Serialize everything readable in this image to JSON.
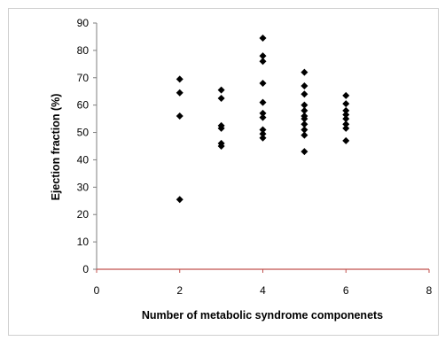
{
  "chart_data": {
    "type": "scatter",
    "xlabel": "Number of metabolic syndrome componenets",
    "ylabel": "Ejection fraction (%)",
    "xlim": [
      0,
      8
    ],
    "ylim": [
      0,
      90
    ],
    "xticks": [
      0,
      2,
      4,
      6,
      8
    ],
    "yticks": [
      0,
      10,
      20,
      30,
      40,
      50,
      60,
      70,
      80,
      90
    ],
    "grid": false,
    "legend": "none",
    "marker": "diamond",
    "marker_color": "#000000",
    "axis_color": "#c0504d",
    "points": [
      {
        "x": 2,
        "y": 69.5
      },
      {
        "x": 2,
        "y": 64.5
      },
      {
        "x": 2,
        "y": 56
      },
      {
        "x": 2,
        "y": 25.5
      },
      {
        "x": 3,
        "y": 65.5
      },
      {
        "x": 3,
        "y": 62.5
      },
      {
        "x": 3,
        "y": 52.5
      },
      {
        "x": 3,
        "y": 51.5
      },
      {
        "x": 3,
        "y": 46
      },
      {
        "x": 3,
        "y": 45
      },
      {
        "x": 4,
        "y": 84.5
      },
      {
        "x": 4,
        "y": 78
      },
      {
        "x": 4,
        "y": 76
      },
      {
        "x": 4,
        "y": 68
      },
      {
        "x": 4,
        "y": 61
      },
      {
        "x": 4,
        "y": 57
      },
      {
        "x": 4,
        "y": 55.5
      },
      {
        "x": 4,
        "y": 51
      },
      {
        "x": 4,
        "y": 49.5
      },
      {
        "x": 4,
        "y": 48
      },
      {
        "x": 5,
        "y": 72
      },
      {
        "x": 5,
        "y": 67
      },
      {
        "x": 5,
        "y": 64
      },
      {
        "x": 5,
        "y": 60
      },
      {
        "x": 5,
        "y": 58
      },
      {
        "x": 5,
        "y": 56
      },
      {
        "x": 5,
        "y": 55
      },
      {
        "x": 5,
        "y": 53
      },
      {
        "x": 5,
        "y": 51
      },
      {
        "x": 5,
        "y": 49
      },
      {
        "x": 5,
        "y": 43
      },
      {
        "x": 6,
        "y": 63.5
      },
      {
        "x": 6,
        "y": 60.5
      },
      {
        "x": 6,
        "y": 58
      },
      {
        "x": 6,
        "y": 56.5
      },
      {
        "x": 6,
        "y": 55
      },
      {
        "x": 6,
        "y": 53
      },
      {
        "x": 6,
        "y": 51.5
      },
      {
        "x": 6,
        "y": 47
      }
    ]
  }
}
